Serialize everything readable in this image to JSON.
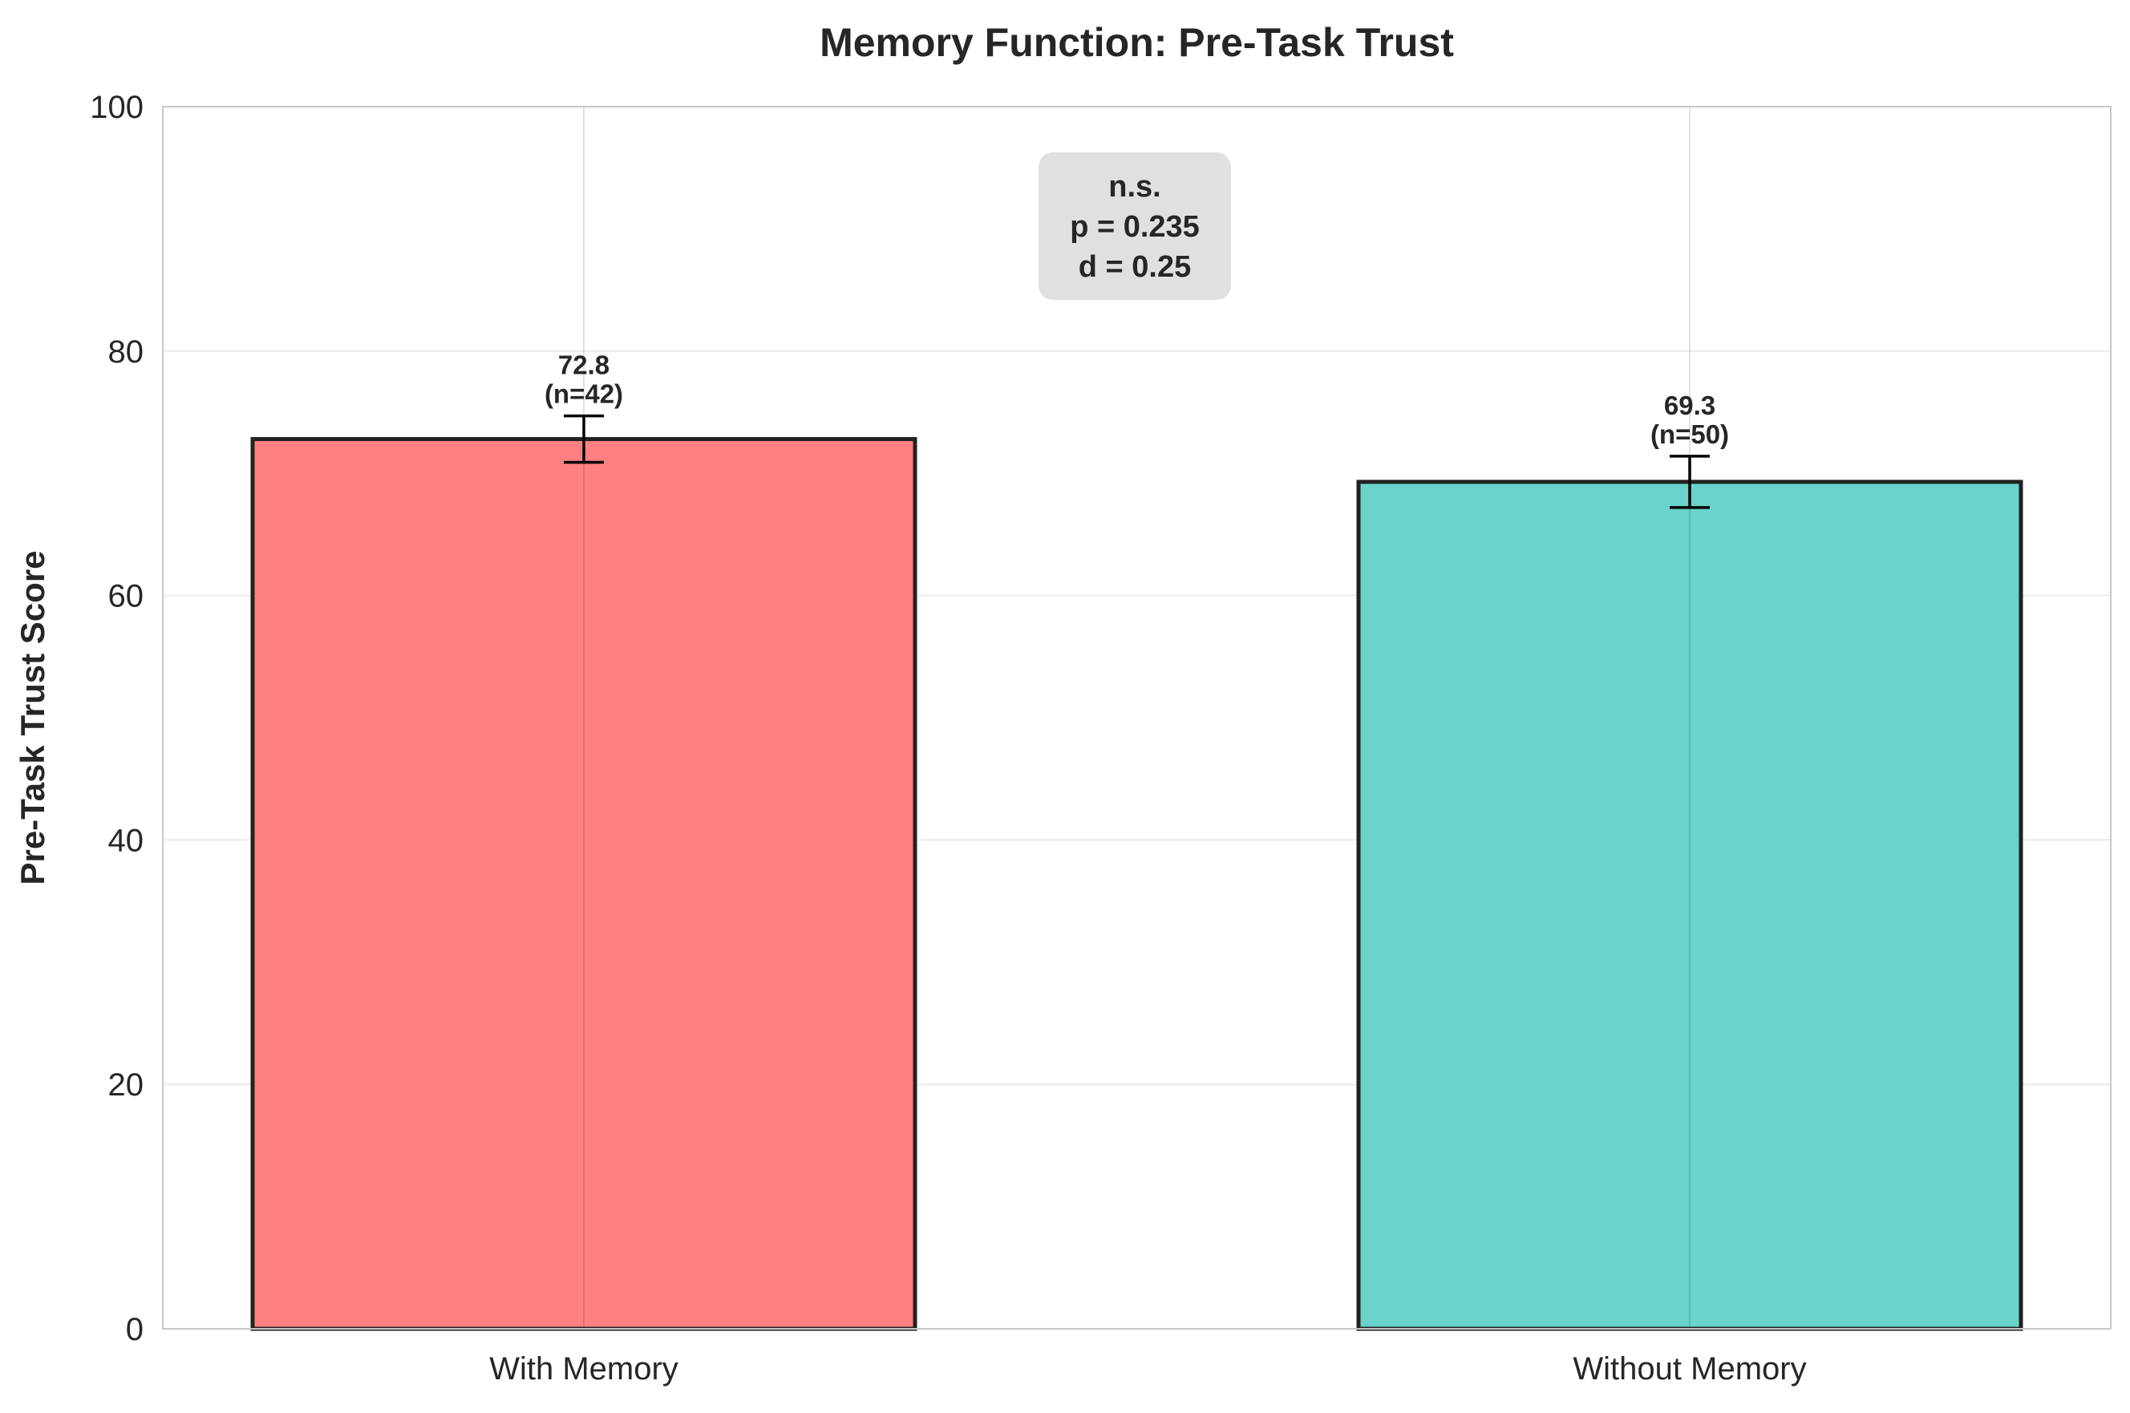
{
  "chart_data": {
    "type": "bar",
    "title": "Memory Function: Pre-Task Trust",
    "xlabel": "",
    "ylabel": "Pre-Task Trust Score",
    "ylim": [
      0,
      100
    ],
    "yticks": [
      0,
      20,
      40,
      60,
      80,
      100
    ],
    "categories": [
      "With Memory",
      "Without Memory"
    ],
    "values": [
      72.8,
      69.3
    ],
    "errors": [
      1.9,
      2.1
    ],
    "n": [
      42,
      50
    ],
    "value_labels": [
      "72.8",
      "69.3"
    ],
    "n_labels": [
      "(n=42)",
      "(n=50)"
    ],
    "colors": [
      "#ff8080",
      "#6ad3cb"
    ],
    "edge_color": "#222222",
    "grid": true,
    "stats_box": {
      "lines": [
        "n.s.",
        "p = 0.235",
        "d = 0.25"
      ],
      "background": "#e0e0e0"
    }
  }
}
